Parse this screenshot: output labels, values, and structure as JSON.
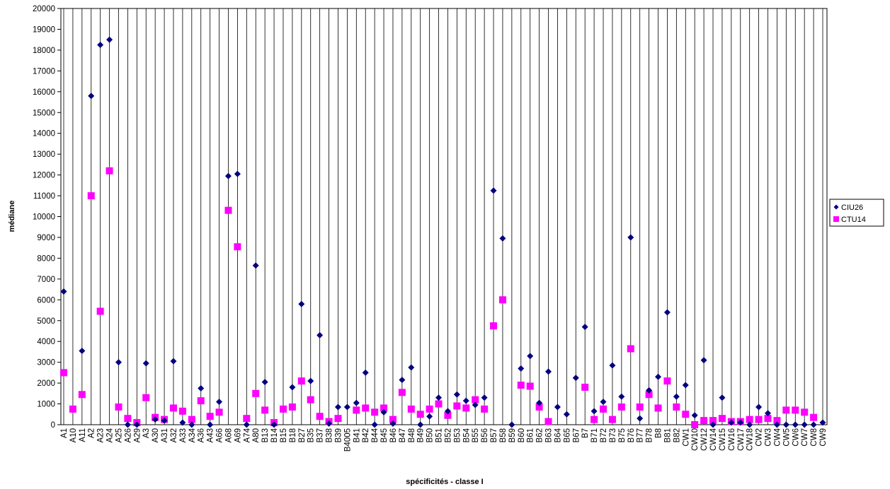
{
  "chart_data": {
    "type": "scatter",
    "x_label": "spécificités - classe I",
    "y_label": "médiane",
    "categories": [
      "A1",
      "A10",
      "A11",
      "A2",
      "A23",
      "A24",
      "A25",
      "A26",
      "A29",
      "A3",
      "A30",
      "A31",
      "A32",
      "A33",
      "A34",
      "A36",
      "A43",
      "A66",
      "A68",
      "A69",
      "A74",
      "A80",
      "B13",
      "B14",
      "B15",
      "B18",
      "B27",
      "B35",
      "B37",
      "B38",
      "B39",
      "B4005",
      "B41",
      "B42",
      "B44",
      "B45",
      "B46",
      "B47",
      "B48",
      "B49",
      "B50",
      "B51",
      "B52",
      "B53",
      "B54",
      "B55",
      "B56",
      "B57",
      "B58",
      "B59",
      "B60",
      "B61",
      "B62",
      "B63",
      "B64",
      "B65",
      "B67",
      "B7",
      "B71",
      "B72",
      "B73",
      "B75",
      "B76",
      "B77",
      "B78",
      "B8",
      "B81",
      "B82",
      "CW1",
      "CW10",
      "CW12",
      "CW14",
      "CW15",
      "CW16",
      "CW17",
      "CW18",
      "CW2",
      "CW3",
      "CW4",
      "CW5",
      "CW6",
      "CW7",
      "CW8",
      "CW9"
    ],
    "series": [
      {
        "name": "CIU26",
        "color": "#000080",
        "marker": "diamond",
        "values": [
          6400,
          null,
          3550,
          15800,
          18250,
          18500,
          3000,
          0,
          0,
          2950,
          250,
          200,
          3050,
          100,
          0,
          1750,
          0,
          1100,
          11950,
          12050,
          0,
          7650,
          2050,
          0,
          null,
          1800,
          5800,
          2100,
          4300,
          50,
          850,
          850,
          1050,
          2500,
          0,
          600,
          50,
          2150,
          2750,
          0,
          400,
          1300,
          650,
          1450,
          1150,
          950,
          1300,
          11250,
          8950,
          0,
          2700,
          3300,
          1050,
          2550,
          850,
          500,
          2250,
          4700,
          650,
          1100,
          2850,
          1350,
          9000,
          300,
          1650,
          2300,
          5400,
          1350,
          1900,
          450,
          3100,
          0,
          1300,
          100,
          100,
          0,
          850,
          550,
          0,
          0,
          0,
          0,
          0,
          100
        ]
      },
      {
        "name": "CTU14",
        "color": "#ff00ff",
        "marker": "square",
        "values": [
          2500,
          750,
          1450,
          11000,
          5450,
          12200,
          850,
          300,
          100,
          1300,
          350,
          250,
          800,
          650,
          250,
          1150,
          400,
          600,
          10300,
          8550,
          300,
          1500,
          700,
          100,
          750,
          850,
          2100,
          1200,
          400,
          150,
          300,
          null,
          700,
          800,
          600,
          800,
          250,
          1550,
          750,
          500,
          750,
          1000,
          450,
          900,
          800,
          1200,
          750,
          4750,
          6000,
          null,
          1900,
          1850,
          850,
          150,
          null,
          null,
          null,
          1800,
          250,
          750,
          250,
          850,
          3650,
          850,
          1450,
          800,
          2100,
          850,
          500,
          0,
          200,
          200,
          300,
          150,
          150,
          250,
          250,
          300,
          200,
          700,
          700,
          600,
          350,
          null
        ]
      }
    ],
    "ylim": [
      0,
      20000
    ],
    "yticks": [
      0,
      1000,
      2000,
      3000,
      4000,
      5000,
      6000,
      7000,
      8000,
      9000,
      10000,
      11000,
      12000,
      13000,
      14000,
      15000,
      16000,
      17000,
      18000,
      19000,
      20000
    ],
    "grid": "x",
    "legend": "right"
  }
}
